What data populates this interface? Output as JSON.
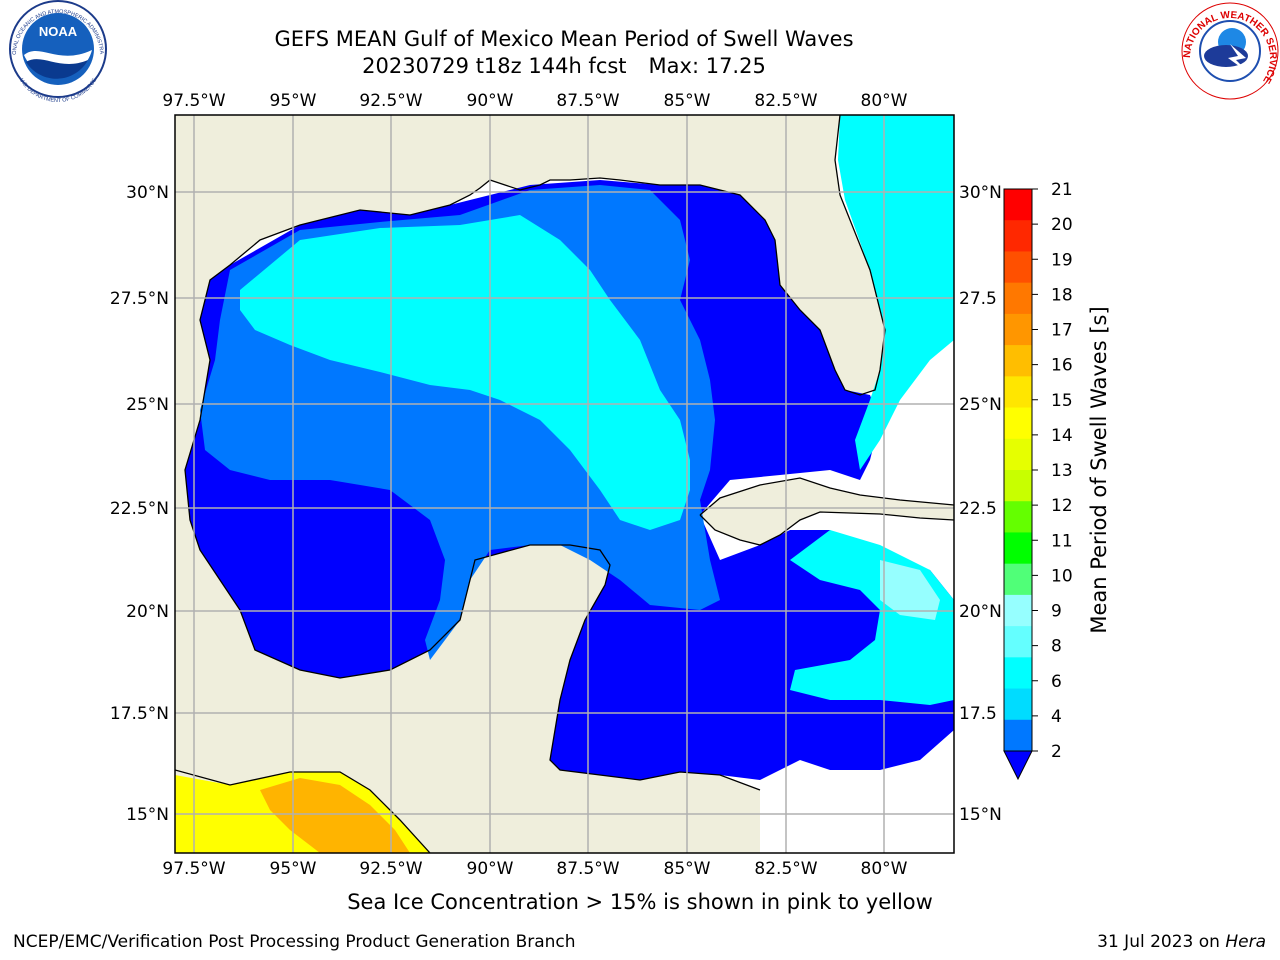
{
  "title": {
    "line1": "GEFS MEAN Gulf of Mexico Mean Period of Swell Waves",
    "line2_date": "20230729 t18z 144h fcst",
    "line2_max": "Max: 17.25"
  },
  "logos": {
    "noaa": {
      "text": "NOAA",
      "ring_top": "NATIONAL OCEANIC AND ATMOSPHERIC ADMINISTRATION",
      "ring_bottom": "U.S. DEPARTMENT OF COMMERCE"
    },
    "nws": {
      "ring_text": "NATIONAL WEATHER SERVICE"
    }
  },
  "map": {
    "lon_labels": [
      "97.5°W",
      "95°W",
      "92.5°W",
      "90°W",
      "87.5°W",
      "85°W",
      "82.5°W",
      "80°W"
    ],
    "lat_labels_left": [
      "30°N",
      "27.5°N",
      "25°N",
      "22.5°N",
      "20°N",
      "17.5°N",
      "15°N"
    ],
    "lat_labels_right": [
      "30°N",
      "27.5",
      "25°N",
      "22.5",
      "20°N",
      "17.5",
      "15°N"
    ],
    "colors": {
      "land": "#efeedc",
      "ocean_dark": "#0000ff",
      "ocean_mid": "#0078ff",
      "ocean_light": "#00ffff",
      "ice_yellow": "#ffff00",
      "ice_orange": "#ffb400"
    }
  },
  "colorbar": {
    "label": "Mean Period of Swell Waves [s]",
    "ticks": [
      "21",
      "20",
      "19",
      "18",
      "17",
      "16",
      "15",
      "14",
      "13",
      "12",
      "11",
      "10",
      "9",
      "8",
      "6",
      "4",
      "2"
    ],
    "colors": [
      "#ff0000",
      "#ff2800",
      "#ff5000",
      "#ff7800",
      "#ff9600",
      "#ffbe00",
      "#ffe600",
      "#ffff00",
      "#e6ff00",
      "#c8ff00",
      "#64ff00",
      "#00ff00",
      "#50ff78",
      "#96ffff",
      "#64ffff",
      "#00ffff",
      "#00dcff",
      "#0078ff"
    ],
    "extend_color": "#0000ff"
  },
  "caption": "Sea Ice Concentration > 15% is shown in pink to yellow",
  "footer": {
    "left": "NCEP/EMC/Verification Post Processing Product Generation Branch",
    "right_date": "31 Jul 2023 on ",
    "right_host": "Hera"
  }
}
